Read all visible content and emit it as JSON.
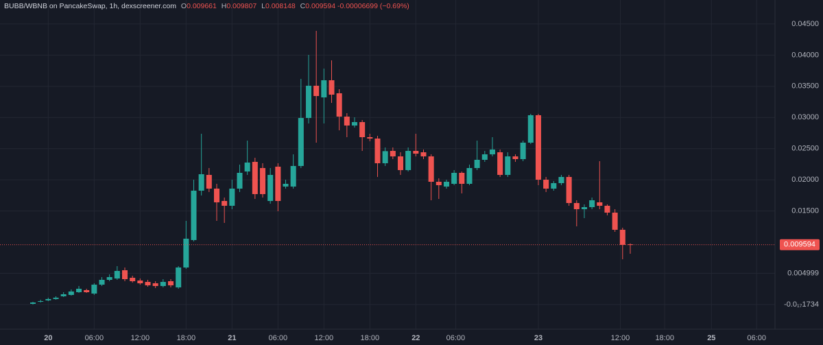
{
  "chart_data": {
    "type": "candlestick",
    "title": "BUBB/WBNB on PancakeSwap, 1h, dexscreener.com",
    "last_bar_keys": [
      "O",
      "H",
      "L",
      "C"
    ],
    "change": -6.699e-05,
    "change_pct": -0.69,
    "change_pct_label": "(−0.69%)",
    "up_color": "#26a69a",
    "down_color": "#ef5350",
    "grid": true,
    "open": [
      0.00011,
      0.00044,
      0.00066,
      0.00088,
      0.00132,
      0.00154,
      0.00198,
      0.00231,
      0.00176,
      0.00319,
      0.00396,
      0.00418,
      0.0055,
      0.00429,
      0.00385,
      0.00363,
      0.00341,
      0.00297,
      0.00374,
      0.00275,
      0.00594,
      0.01034,
      0.01826,
      0.02079,
      0.01859,
      0.01661,
      0.01584,
      0.01859,
      0.02134,
      0.02288,
      0.02189,
      0.01661,
      0.02211,
      0.01892,
      0.01892,
      0.02222,
      0.02992,
      0.03509,
      0.03322,
      0.03597,
      0.03388,
      0.03014,
      0.02871,
      0.02926,
      0.02684,
      0.02662,
      0.02266,
      0.02464,
      0.02376,
      0.02156,
      0.02464,
      0.02442,
      0.02376,
      0.01969,
      0.01892,
      0.01936,
      0.02112,
      0.01936,
      0.02189,
      0.02321,
      0.02409,
      0.02442,
      0.02079,
      0.02376,
      0.02332,
      0.02596,
      0.03036,
      0.02002,
      0.01859,
      0.01947,
      0.02046,
      0.01628,
      0.01529,
      0.01562,
      0.01639,
      0.01584,
      0.01474,
      0.01199,
      0.009661
    ],
    "high": [
      0.00044,
      0.00077,
      0.0011,
      0.00132,
      0.00198,
      0.00242,
      0.00297,
      0.00253,
      0.00341,
      0.0044,
      0.00484,
      0.00616,
      0.00594,
      0.00462,
      0.00418,
      0.00396,
      0.00374,
      0.00407,
      0.00407,
      0.00616,
      0.01342,
      0.02002,
      0.02739,
      0.02189,
      0.01936,
      0.01716,
      0.02002,
      0.02244,
      0.02629,
      0.02354,
      0.02266,
      0.02189,
      0.02266,
      0.02002,
      0.02409,
      0.03619,
      0.04004,
      0.04389,
      0.03784,
      0.03916,
      0.03454,
      0.03069,
      0.03003,
      0.02959,
      0.02739,
      0.02706,
      0.02519,
      0.02519,
      0.02442,
      0.02519,
      0.02739,
      0.02486,
      0.02409,
      0.02024,
      0.02002,
      0.02156,
      0.02134,
      0.02244,
      0.02629,
      0.02464,
      0.02684,
      0.02486,
      0.02442,
      0.02409,
      0.02629,
      0.03058,
      0.03058,
      0.02046,
      0.0198,
      0.02079,
      0.02079,
      0.01672,
      0.01606,
      0.01716,
      0.02299,
      0.01606,
      0.01529,
      0.01232,
      0.009807
    ],
    "low": [
      0,
      0.00033,
      0.00055,
      0.00077,
      0.00121,
      0.00143,
      0.00187,
      0.00187,
      0.00154,
      0.00297,
      0.00374,
      0.00396,
      0.00374,
      0.00352,
      0.00319,
      0.00286,
      0.00264,
      0.00275,
      0.00275,
      0.00253,
      0.00572,
      0.01012,
      0.01749,
      0.01804,
      0.01342,
      0.01309,
      0.01529,
      0.01804,
      0.02079,
      0.01694,
      0.01716,
      0.01617,
      0.01496,
      0.01859,
      0.01859,
      0.02189,
      0.02904,
      0.02596,
      0.02904,
      0.03234,
      0.02794,
      0.02684,
      0.02838,
      0.02464,
      0.02618,
      0.02046,
      0.02222,
      0.02332,
      0.02079,
      0.02134,
      0.02376,
      0.02332,
      0.01672,
      0.01694,
      0.01859,
      0.01914,
      0.01782,
      0.01914,
      0.02156,
      0.02288,
      0.02376,
      0.02046,
      0.02046,
      0.02288,
      0.02299,
      0.02574,
      0.01914,
      0.01804,
      0.01826,
      0.01914,
      0.01584,
      0.01254,
      0.01386,
      0.01529,
      0.01529,
      0.0143,
      0.01166,
      0.00726,
      0.008148
    ],
    "close": [
      0.00033,
      0.00055,
      0.00088,
      0.0011,
      0.00165,
      0.00209,
      0.00253,
      0.00198,
      0.00319,
      0.00396,
      0.0044,
      0.00539,
      0.00407,
      0.00374,
      0.00341,
      0.00308,
      0.00297,
      0.00363,
      0.00308,
      0.00594,
      0.01056,
      0.01826,
      0.0209,
      0.01859,
      0.01639,
      0.01584,
      0.01859,
      0.02112,
      0.02277,
      0.01771,
      0.01771,
      0.02079,
      0.01661,
      0.01936,
      0.02222,
      0.02992,
      0.03509,
      0.03344,
      0.03597,
      0.03366,
      0.03014,
      0.02871,
      0.02926,
      0.02684,
      0.02662,
      0.02266,
      0.0246,
      0.02376,
      0.02156,
      0.02464,
      0.0242,
      0.02376,
      0.01969,
      0.01914,
      0.01969,
      0.02112,
      0.01936,
      0.02189,
      0.02321,
      0.02409,
      0.02486,
      0.02079,
      0.02376,
      0.02332,
      0.02596,
      0.03036,
      0.02002,
      0.01859,
      0.01947,
      0.02046,
      0.01628,
      0.01529,
      0.01562,
      0.01672,
      0.01584,
      0.01474,
      0.01199,
      0.00957,
      0.009594
    ],
    "xlim": [
      -4.3,
      96.9
    ],
    "ylim": [
      -0.00396,
      0.04884
    ],
    "yticks": [
      {
        "value": 0.045,
        "label": "0.04500"
      },
      {
        "value": 0.04,
        "label": "0.04000"
      },
      {
        "value": 0.035,
        "label": "0.03500"
      },
      {
        "value": 0.03,
        "label": "0.03000"
      },
      {
        "value": 0.025,
        "label": "0.02500"
      },
      {
        "value": 0.02,
        "label": "0.02000"
      },
      {
        "value": 0.015,
        "label": "0.01500"
      },
      0.004999,
      {
        "value": -1.734e-18,
        "label": "-0.0₁₇1734"
      }
    ],
    "xticks": [
      {
        "value": 2,
        "label": "20"
      },
      {
        "value": 8,
        "label": "06:00"
      },
      {
        "value": 14,
        "label": "12:00"
      },
      {
        "value": 20,
        "label": "18:00"
      },
      {
        "value": 26,
        "label": "21"
      },
      {
        "value": 32,
        "label": "06:00"
      },
      {
        "value": 38,
        "label": "12:00"
      },
      {
        "value": 44,
        "label": "18:00"
      },
      {
        "value": 50,
        "label": "22"
      },
      {
        "value": 55.2,
        "label": "06:00"
      },
      {
        "value": 66,
        "label": "23"
      },
      {
        "value": 76.7,
        "label": "12:00"
      },
      {
        "value": 82.5,
        "label": "18:00"
      },
      {
        "value": 88.6,
        "label": "25"
      },
      {
        "value": 94.5,
        "label": "06:00"
      }
    ]
  }
}
